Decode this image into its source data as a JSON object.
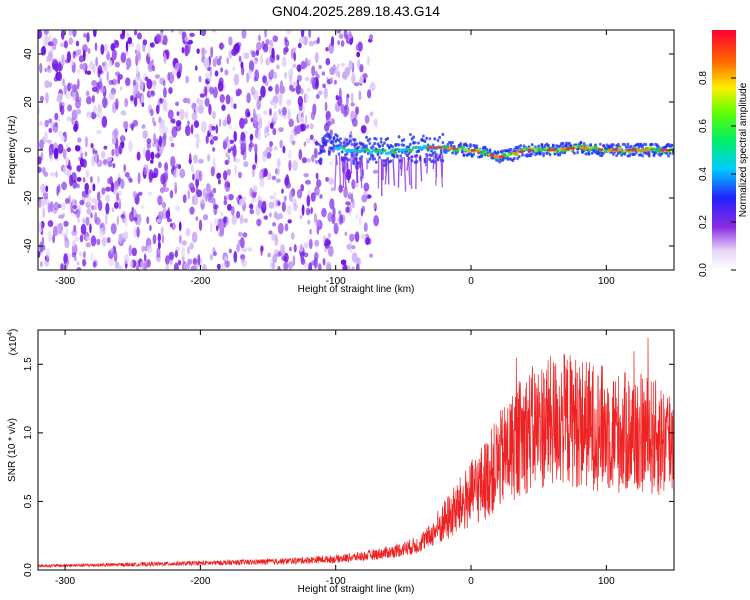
{
  "title": "GN04.2025.289.18.43.G14",
  "colors": {
    "snr_line": "#ee2222",
    "signal_core": "#ee3333",
    "signal_mid": "#22cc44",
    "signal_edge": "#2288ff",
    "noise": "#7a1ee6"
  },
  "chart_data": [
    {
      "type": "heatmap",
      "title": "",
      "xlabel": "Height of straight line (km)",
      "ylabel": "Frequency (Hz)",
      "xlim": [
        -320,
        150
      ],
      "ylim": [
        -50,
        50
      ],
      "x_ticks": [
        -300,
        -200,
        -100,
        0,
        100
      ],
      "x_tick_labels": [
        "-300",
        "-200",
        "-100",
        "0",
        "100"
      ],
      "y_ticks": [
        -40,
        -20,
        0,
        20,
        40
      ],
      "y_tick_labels": [
        "-40",
        "-20",
        "0",
        "20",
        "40"
      ],
      "colorbar": {
        "label": "Normalized spectral amplitude",
        "range": [
          0,
          1
        ],
        "ticks": [
          0.0,
          0.2,
          0.4,
          0.6,
          0.8
        ],
        "tick_labels": [
          "0.0",
          "0.2",
          "0.4",
          "0.6",
          "0.8"
        ],
        "colormap": "rainbow"
      },
      "features": {
        "noise_region_x": [
          -320,
          -70
        ],
        "signal_track": [
          [
            -110,
            2
          ],
          [
            -90,
            0
          ],
          [
            -60,
            -1
          ],
          [
            -40,
            1
          ],
          [
            -20,
            1
          ],
          [
            0,
            0
          ],
          [
            10,
            -1
          ],
          [
            20,
            -3
          ],
          [
            30,
            -2
          ],
          [
            40,
            0
          ],
          [
            60,
            0
          ],
          [
            80,
            1
          ],
          [
            100,
            0
          ],
          [
            120,
            0
          ],
          [
            150,
            0
          ]
        ]
      }
    },
    {
      "type": "line",
      "title": "",
      "xlabel": "Height of straight line (km)",
      "ylabel": "SNR (10 * v/v)",
      "y_multiplier_label": "(x10",
      "y_multiplier_exp": "4",
      "xlim": [
        -320,
        150
      ],
      "ylim": [
        0,
        1.75
      ],
      "x_ticks": [
        -300,
        -200,
        -100,
        0,
        100
      ],
      "x_tick_labels": [
        "-300",
        "-200",
        "-100",
        "0",
        "100"
      ],
      "y_ticks": [
        0.0,
        0.5,
        1.0,
        1.5
      ],
      "y_tick_labels": [
        "0.0",
        "0.5",
        "1.0",
        "1.5"
      ],
      "series": [
        {
          "x": [
            -320,
            -250,
            -200,
            -150,
            -100,
            -80,
            -60,
            -40,
            -30,
            -20,
            -10,
            0,
            10,
            20,
            30,
            40,
            50,
            60,
            70,
            80,
            90,
            100,
            110,
            120,
            130,
            140,
            150
          ],
          "y": [
            0.03,
            0.04,
            0.05,
            0.06,
            0.08,
            0.1,
            0.13,
            0.18,
            0.25,
            0.35,
            0.45,
            0.55,
            0.65,
            0.78,
            0.9,
            1.0,
            1.05,
            1.08,
            1.1,
            1.08,
            1.05,
            1.03,
            1.0,
            1.0,
            0.98,
            0.95,
            0.95
          ]
        }
      ]
    }
  ]
}
